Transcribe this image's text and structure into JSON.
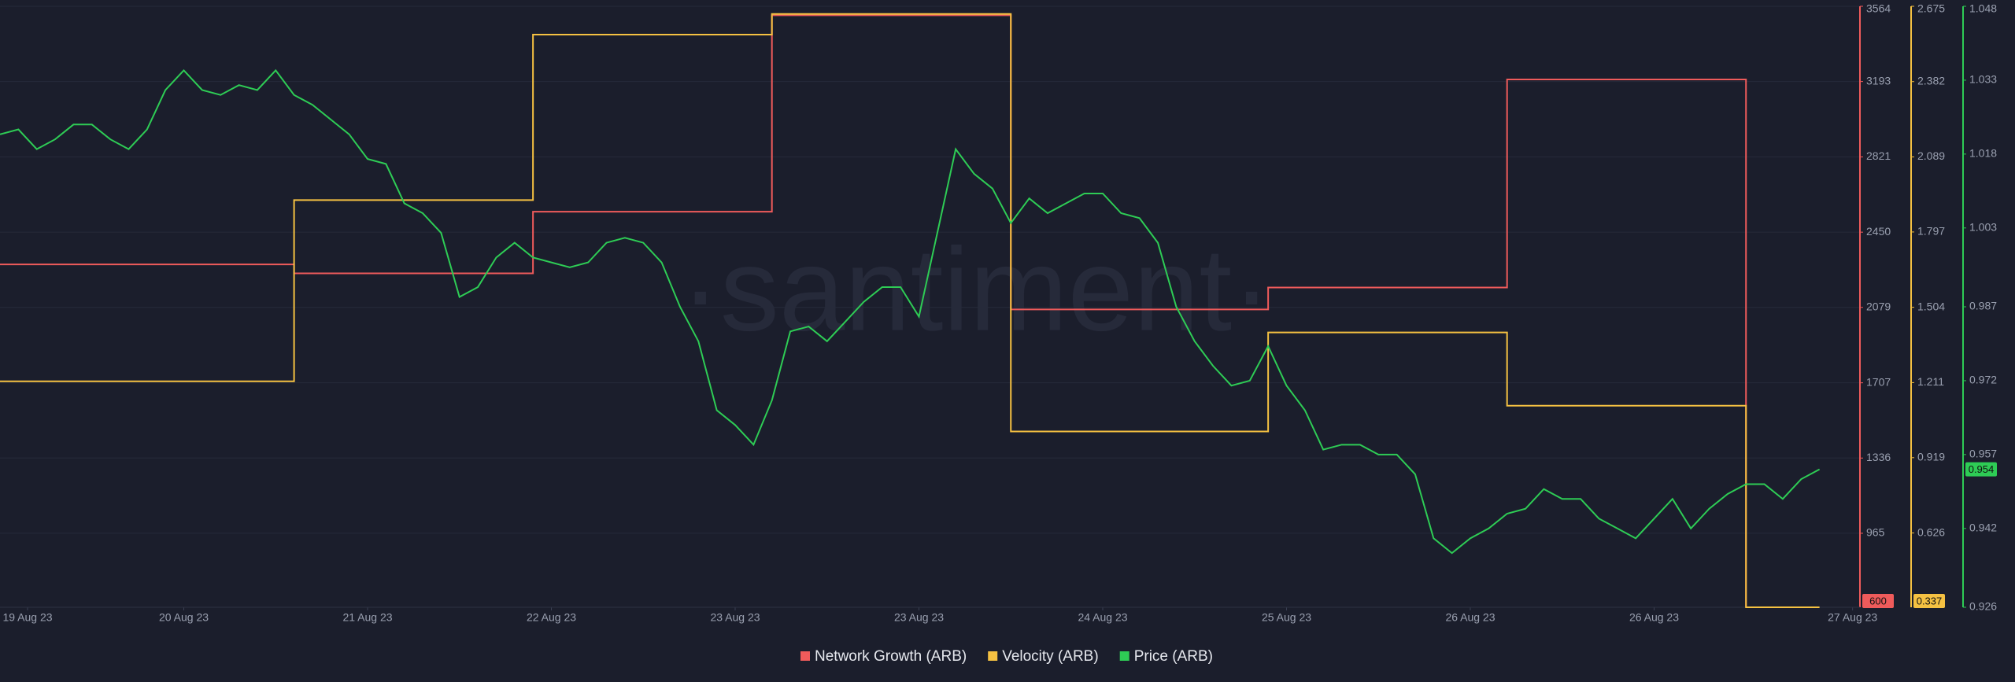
{
  "chart_data": {
    "type": "line",
    "watermark": "·santiment·",
    "xlim": [
      0,
      101.2
    ],
    "xticks": [
      {
        "value": 1.5,
        "label": "19 Aug 23"
      },
      {
        "value": 10,
        "label": "20 Aug 23"
      },
      {
        "value": 20,
        "label": "21 Aug 23"
      },
      {
        "value": 30,
        "label": "22 Aug 23"
      },
      {
        "value": 40,
        "label": "23 Aug 23"
      },
      {
        "value": 50,
        "label": "23 Aug 23"
      },
      {
        "value": 60,
        "label": "24 Aug 23"
      },
      {
        "value": 70,
        "label": "25 Aug 23"
      },
      {
        "value": 80,
        "label": "26 Aug 23"
      },
      {
        "value": 90,
        "label": "26 Aug 23"
      },
      {
        "value": 100.8,
        "label": "27 Aug 23"
      }
    ],
    "ylim": [
      600,
      3564
    ],
    "yticks": [
      965,
      1336,
      1707,
      2079,
      2450,
      2821,
      3193,
      3564
    ],
    "y2lim": [
      0.337,
      2.675
    ],
    "y2ticks": [
      0.626,
      0.919,
      1.211,
      1.504,
      1.797,
      2.089,
      2.382,
      2.675
    ],
    "y3lim": [
      0.926,
      1.048
    ],
    "y3ticks": [
      0.926,
      0.942,
      0.957,
      0.972,
      0.987,
      1.003,
      1.018,
      1.033,
      1.048
    ],
    "grid": true,
    "legend": "bottom",
    "series": [
      {
        "name": "Network Growth (ARB)",
        "color": "#ef5b5b",
        "axis": "y",
        "step": true,
        "values": [
          2291,
          2291,
          2291,
          2291,
          2291,
          2291,
          2291,
          2291,
          2291,
          2291,
          2291,
          2291,
          2291,
          2291,
          2291,
          2291,
          2247,
          2247,
          2247,
          2247,
          2247,
          2247,
          2247,
          2247,
          2247,
          2247,
          2247,
          2247,
          2247,
          2551,
          2551,
          2551,
          2551,
          2551,
          2551,
          2551,
          2551,
          2551,
          2551,
          2551,
          2551,
          2551,
          3520,
          3520,
          3520,
          3520,
          3520,
          3520,
          3520,
          3520,
          3520,
          3520,
          3520,
          3520,
          3520,
          2069,
          2069,
          2069,
          2069,
          2069,
          2069,
          2069,
          2069,
          2069,
          2069,
          2069,
          2069,
          2069,
          2069,
          2177,
          2177,
          2177,
          2177,
          2177,
          2177,
          2177,
          2177,
          2177,
          2177,
          2177,
          2177,
          2177,
          3203,
          3203,
          3203,
          3203,
          3203,
          3203,
          3203,
          3203,
          3203,
          3203,
          3203,
          3203,
          3203,
          600,
          null,
          null,
          null,
          null
        ]
      },
      {
        "name": "Velocity (ARB)",
        "color": "#f5c142",
        "axis": "y2",
        "step": true,
        "values": [
          1.216,
          1.216,
          1.216,
          1.216,
          1.216,
          1.216,
          1.216,
          1.216,
          1.216,
          1.216,
          1.216,
          1.216,
          1.216,
          1.216,
          1.216,
          1.216,
          1.921,
          1.921,
          1.921,
          1.921,
          1.921,
          1.921,
          1.921,
          1.921,
          1.921,
          1.921,
          1.921,
          1.921,
          1.921,
          2.565,
          2.565,
          2.565,
          2.565,
          2.565,
          2.565,
          2.565,
          2.565,
          2.565,
          2.565,
          2.565,
          2.565,
          2.565,
          2.645,
          2.645,
          2.645,
          2.645,
          2.645,
          2.645,
          2.645,
          2.645,
          2.645,
          2.645,
          2.645,
          2.645,
          2.645,
          1.021,
          1.021,
          1.021,
          1.021,
          1.021,
          1.021,
          1.021,
          1.021,
          1.021,
          1.021,
          1.021,
          1.021,
          1.021,
          1.021,
          1.406,
          1.406,
          1.406,
          1.406,
          1.406,
          1.406,
          1.406,
          1.406,
          1.406,
          1.406,
          1.406,
          1.406,
          1.406,
          1.121,
          1.121,
          1.121,
          1.121,
          1.121,
          1.121,
          1.121,
          1.121,
          1.121,
          1.121,
          1.121,
          1.121,
          1.121,
          0.337,
          0.337,
          0.337,
          0.337,
          0.337
        ]
      },
      {
        "name": "Price (ARB)",
        "color": "#2ecc55",
        "axis": "y3",
        "step": false,
        "values": [
          1.022,
          1.023,
          1.019,
          1.021,
          1.024,
          1.024,
          1.021,
          1.019,
          1.023,
          1.031,
          1.035,
          1.031,
          1.03,
          1.032,
          1.031,
          1.035,
          1.03,
          1.028,
          1.025,
          1.022,
          1.017,
          1.016,
          1.008,
          1.006,
          1.002,
          0.989,
          0.991,
          0.997,
          1.0,
          0.997,
          0.996,
          0.995,
          0.996,
          1.0,
          1.001,
          1.0,
          0.996,
          0.987,
          0.98,
          0.966,
          0.963,
          0.959,
          0.968,
          0.982,
          0.983,
          0.98,
          0.984,
          0.988,
          0.991,
          0.991,
          0.985,
          1.002,
          1.019,
          1.014,
          1.011,
          1.004,
          1.009,
          1.006,
          1.008,
          1.01,
          1.01,
          1.006,
          1.005,
          1.0,
          0.987,
          0.98,
          0.975,
          0.971,
          0.972,
          0.979,
          0.971,
          0.966,
          0.958,
          0.959,
          0.959,
          0.957,
          0.957,
          0.953,
          0.94,
          0.937,
          0.94,
          0.942,
          0.945,
          0.946,
          0.95,
          0.948,
          0.948,
          0.944,
          0.942,
          0.94,
          0.944,
          0.948,
          0.942,
          0.946,
          0.949,
          0.951,
          0.951,
          0.948,
          0.952,
          0.954
        ]
      }
    ]
  }
}
